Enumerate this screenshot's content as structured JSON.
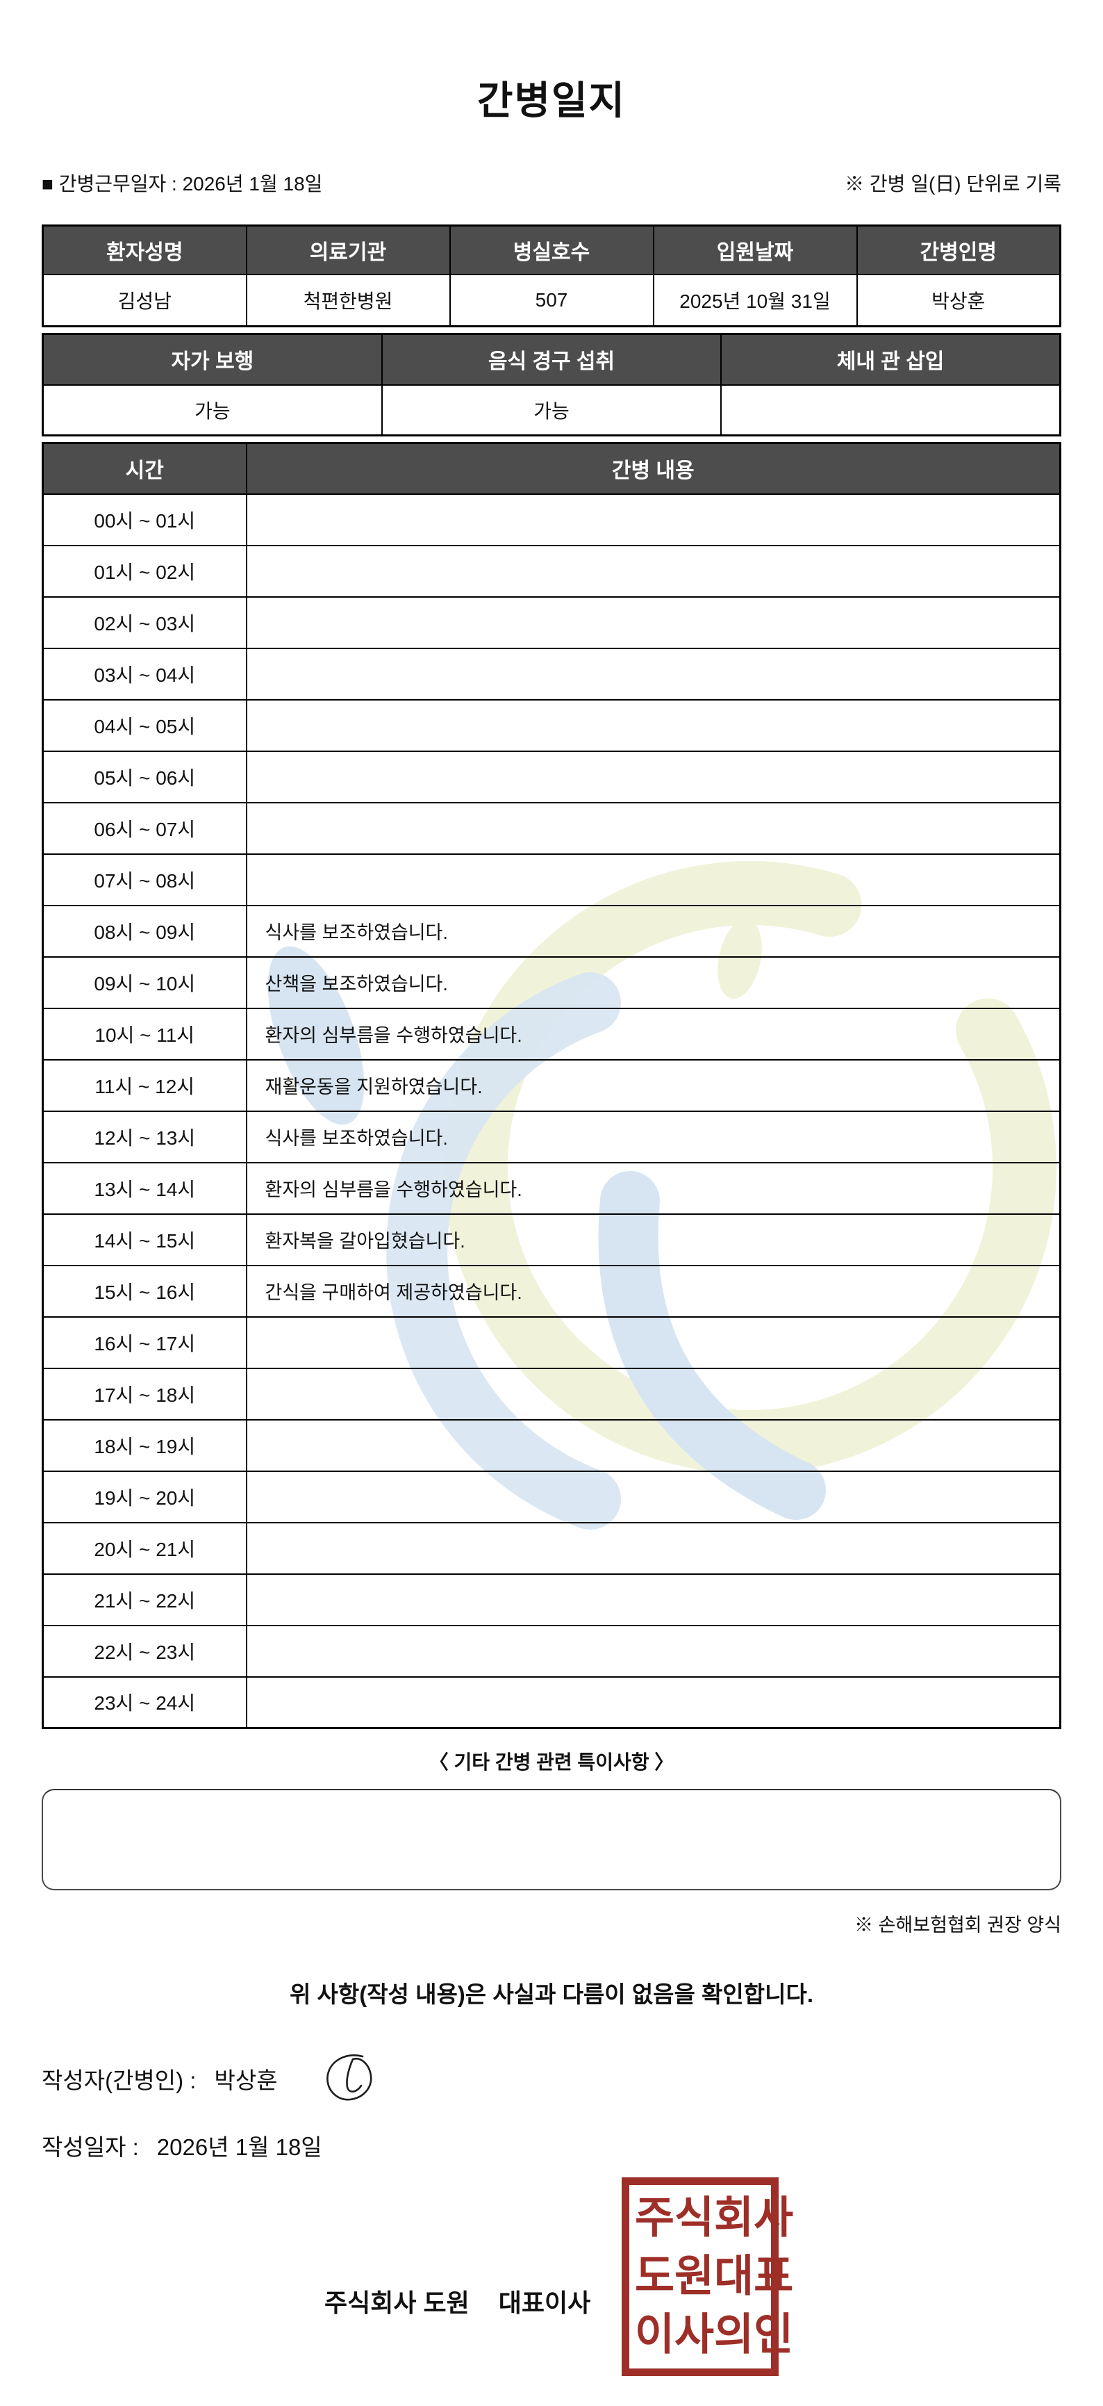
{
  "title": "간병일지",
  "meta": {
    "work_date": "■ 간병근무일자 : 2026년 1월 18일",
    "record_note": "※ 간병 일(日) 단위로 기록"
  },
  "patient_table": {
    "headers": [
      "환자성명",
      "의료기관",
      "병실호수",
      "입원날짜",
      "간병인명"
    ],
    "values": [
      "김성남",
      "척편한병원",
      "507",
      "2025년 10월 31일",
      "박상훈"
    ]
  },
  "condition_table": {
    "headers": [
      "자가 보행",
      "음식 경구 섭취",
      "체내 관 삽입"
    ],
    "values": [
      "가능",
      "가능",
      ""
    ]
  },
  "care_table": {
    "time_header": "시간",
    "content_header": "간병 내용",
    "rows": [
      {
        "time": "00시 ~ 01시",
        "content": ""
      },
      {
        "time": "01시 ~ 02시",
        "content": ""
      },
      {
        "time": "02시 ~ 03시",
        "content": ""
      },
      {
        "time": "03시 ~ 04시",
        "content": ""
      },
      {
        "time": "04시 ~ 05시",
        "content": ""
      },
      {
        "time": "05시 ~ 06시",
        "content": ""
      },
      {
        "time": "06시 ~ 07시",
        "content": ""
      },
      {
        "time": "07시 ~ 08시",
        "content": ""
      },
      {
        "time": "08시 ~ 09시",
        "content": "식사를 보조하였습니다."
      },
      {
        "time": "09시 ~ 10시",
        "content": "산책을 보조하였습니다."
      },
      {
        "time": "10시 ~ 11시",
        "content": "환자의 심부름을 수행하였습니다."
      },
      {
        "time": "11시 ~ 12시",
        "content": "재활운동을 지원하였습니다."
      },
      {
        "time": "12시 ~ 13시",
        "content": "식사를 보조하였습니다."
      },
      {
        "time": "13시 ~ 14시",
        "content": "환자의 심부름을 수행하였습니다."
      },
      {
        "time": "14시 ~ 15시",
        "content": "환자복을 갈아입혔습니다."
      },
      {
        "time": "15시 ~ 16시",
        "content": "간식을 구매하여 제공하였습니다."
      },
      {
        "time": "16시 ~ 17시",
        "content": ""
      },
      {
        "time": "17시 ~ 18시",
        "content": ""
      },
      {
        "time": "18시 ~ 19시",
        "content": ""
      },
      {
        "time": "19시 ~ 20시",
        "content": ""
      },
      {
        "time": "20시 ~ 21시",
        "content": ""
      },
      {
        "time": "21시 ~ 22시",
        "content": ""
      },
      {
        "time": "22시 ~ 23시",
        "content": ""
      },
      {
        "time": "23시 ~ 24시",
        "content": ""
      }
    ]
  },
  "notes": {
    "heading": "〈 기타 간병 관련 특이사항 〉",
    "content": "",
    "form_note": "※ 손해보험협회 권장 양식"
  },
  "footer": {
    "confirmation": "위 사항(작성 내용)은 사실과 다름이 없음을 확인합니다.",
    "writer_label": "작성자(간병인) :",
    "writer_name": "박상훈",
    "date_label": "작성일자 :",
    "date_value": "2026년 1월 18일",
    "company_name": "주식회사 도원",
    "company_title": "대표이사",
    "seal_rows": [
      "주식회사",
      "도원대표",
      "이사의인"
    ]
  },
  "colors": {
    "table_header_bg": "#4d4d4d",
    "seal_red": "#9e2f28",
    "watermark_blue": "#d7e5f2",
    "watermark_yellow": "#f0f3d9"
  }
}
